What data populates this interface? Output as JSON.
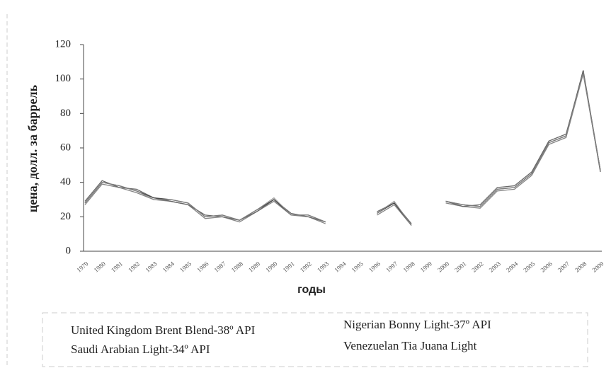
{
  "chart_data": {
    "type": "line",
    "xlabel": "годы",
    "ylabel": "цена, долл. за баррель",
    "categories": [
      "1979",
      "1980",
      "1981",
      "1982",
      "1983",
      "1984",
      "1985",
      "1986",
      "1987",
      "1988",
      "1989",
      "1990",
      "1991",
      "1992",
      "1993",
      "1994",
      "1995",
      "1996",
      "1997",
      "1998",
      "1999",
      "2000",
      "2001",
      "2002",
      "2003",
      "2004",
      "2005",
      "2006",
      "2007",
      "2008",
      "2009"
    ],
    "series": [
      {
        "name": "United Kingdom Brent Blend-38º API",
        "color": "#222222",
        "values": [
          28,
          40,
          38,
          35,
          31,
          30,
          28,
          20,
          21,
          18,
          24,
          30,
          21,
          21,
          17,
          null,
          null,
          22,
          28,
          15,
          null,
          29,
          27,
          26,
          36,
          37,
          45,
          63,
          67,
          105,
          47
        ]
      },
      {
        "name": "Nigerian Bonny Light-37º API",
        "color": "#444444",
        "values": [
          29,
          41,
          37,
          36,
          31,
          29,
          27,
          21,
          20,
          18,
          23,
          30,
          22,
          20,
          17,
          null,
          null,
          23,
          28,
          16,
          null,
          29,
          26,
          27,
          37,
          38,
          46,
          64,
          68,
          104,
          46
        ]
      },
      {
        "name": "Saudi Arabian  Light-34º API",
        "color": "#666666",
        "values": [
          27,
          39,
          37,
          34,
          30,
          29,
          27,
          19,
          20,
          17,
          23,
          29,
          21,
          20,
          16,
          null,
          null,
          21,
          27,
          15,
          null,
          28,
          26,
          25,
          35,
          36,
          44,
          62,
          66,
          103,
          47
        ]
      },
      {
        "name": "Venezuelan Tia Juana Light",
        "color": "#888888",
        "values": [
          28,
          40,
          38,
          35,
          30,
          30,
          28,
          20,
          21,
          18,
          24,
          31,
          21,
          21,
          17,
          null,
          null,
          22,
          29,
          15,
          null,
          29,
          27,
          26,
          36,
          37,
          45,
          63,
          67,
          104,
          47
        ]
      }
    ],
    "ylim": [
      0,
      120
    ],
    "yticks": [
      0,
      20,
      40,
      60,
      80,
      100,
      120
    ]
  }
}
